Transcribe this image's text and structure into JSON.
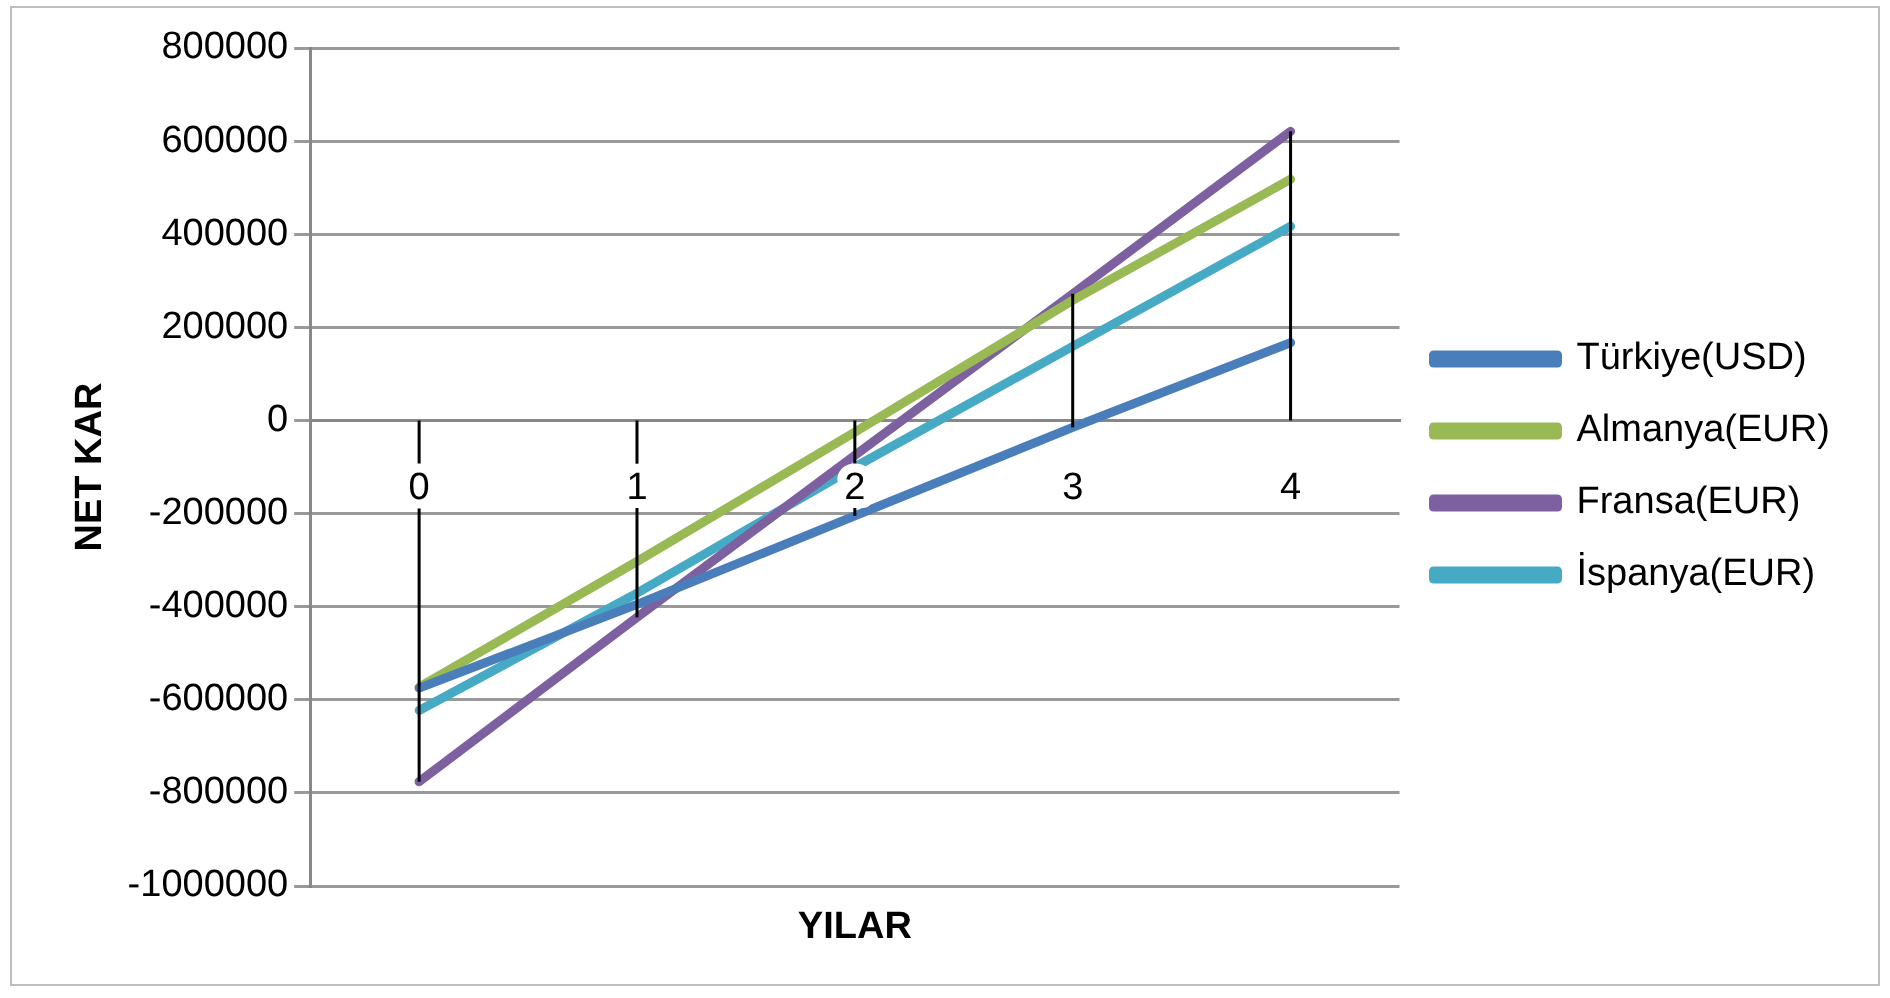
{
  "chart_data": {
    "type": "line",
    "xlabel": "YILAR",
    "ylabel": "NET KAR",
    "categories": [
      "0",
      "1",
      "2",
      "3",
      "4"
    ],
    "series": [
      {
        "name": "Türkiye(USD)",
        "color": "#4a7ebb",
        "values": [
          -575000,
          -395000,
          -205000,
          -15000,
          167000
        ],
        "errors": [
          null,
          null,
          [
            -205000,
            0
          ],
          null,
          null
        ]
      },
      {
        "name": "Almanya(EUR)",
        "color": "#98b954",
        "values": [
          -573000,
          -303000,
          -25000,
          258000,
          518000
        ]
      },
      {
        "name": "Fransa(EUR)",
        "color": "#7d60a0",
        "values": [
          -776000,
          -423000,
          -75000,
          272000,
          621000
        ],
        "errors": [
          [
            -776000,
            0
          ],
          [
            -423000,
            0
          ],
          null,
          [
            -15000,
            272000
          ],
          [
            0,
            621000
          ]
        ]
      },
      {
        "name": "İspanya(EUR)",
        "color": "#46aac5",
        "values": [
          -623000,
          -371000,
          -100000,
          159000,
          417000
        ]
      }
    ],
    "ylim": [
      -1000000,
      800000
    ],
    "yticks": [
      -1000000,
      -800000,
      -600000,
      -400000,
      -200000,
      0,
      200000,
      400000,
      600000,
      800000
    ],
    "grid": "y",
    "legend": "right",
    "marker": "none",
    "line_style": "solid"
  }
}
